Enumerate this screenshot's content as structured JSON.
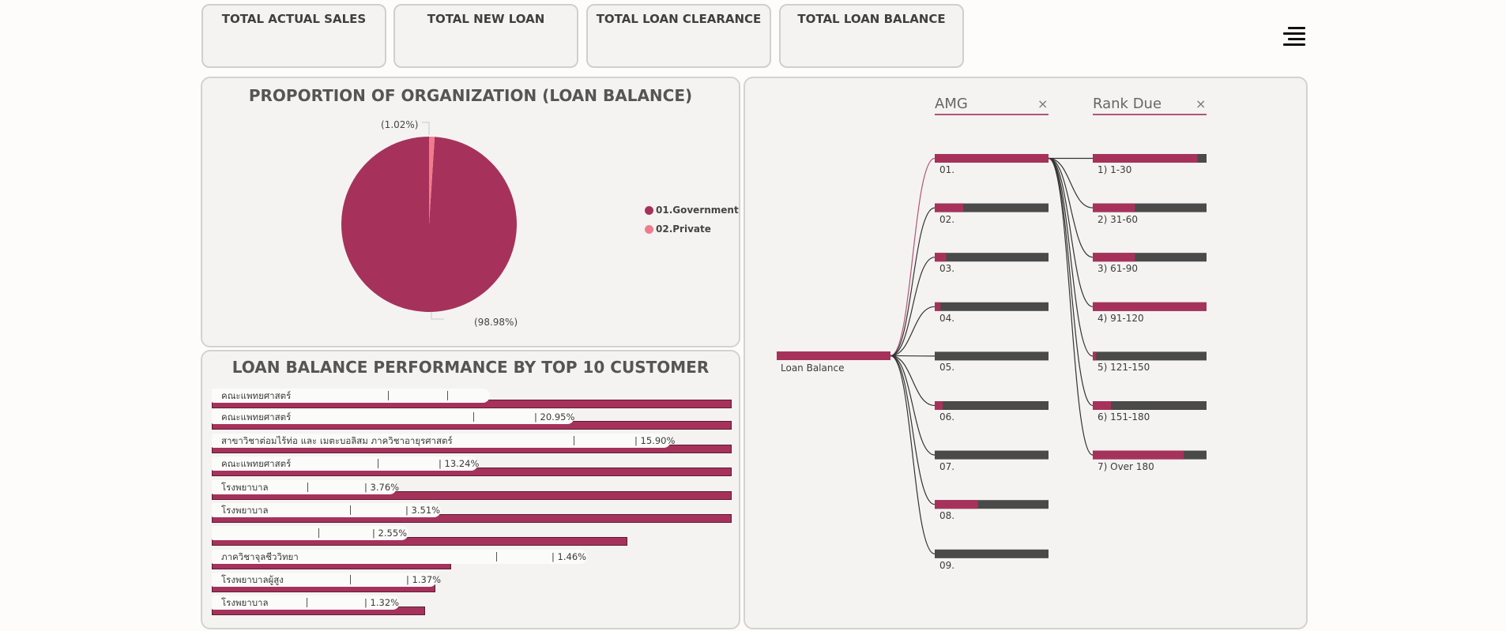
{
  "kpis": [
    {
      "label": "TOTAL ACTUAL SALES"
    },
    {
      "label": "TOTAL NEW LOAN"
    },
    {
      "label": "TOTAL LOAN CLEARANCE"
    },
    {
      "label": "TOTAL LOAN BALANCE"
    }
  ],
  "colors": {
    "accent": "#a6325c",
    "secondary": "#f17b8d",
    "dark_bar": "#4a4a4a",
    "panel_bg": "#f4f3f1"
  },
  "proportion_panel": {
    "title": "PROPORTION OF ORGANIZATION (LOAN BALANCE)",
    "chart_data": {
      "type": "pie",
      "title": "PROPORTION OF ORGANIZATION (LOAN BALANCE)",
      "slices": [
        {
          "name": "01.Government",
          "value": 98.98,
          "label": "(98.98%)",
          "color": "#a6325c"
        },
        {
          "name": "02.Private",
          "value": 1.02,
          "label": "(1.02%)",
          "color": "#f17b8d"
        }
      ],
      "legend": "right"
    }
  },
  "customers_panel": {
    "title": "LOAN BALANCE PERFORMANCE BY TOP 10 CUSTOMER",
    "rows": [
      {
        "name": "คณะแพทยศาสตร์",
        "pct": "",
        "value": 100
      },
      {
        "name": "คณะแพทยศาสตร์",
        "pct": "| 20.95%",
        "value": 100
      },
      {
        "name": "สาขาวิชาต่อมไร้ท่อ และ เมตะบอลิสม ภาควิชาอายุรศาสตร์",
        "pct": "| 15.90%",
        "value": 100
      },
      {
        "name": "คณะแพทยศาสตร์",
        "pct": "| 13.24%",
        "value": 100
      },
      {
        "name": "โรงพยาบาล",
        "pct": "| 3.76%",
        "value": 100
      },
      {
        "name": "โรงพยาบาล",
        "pct": "| 3.51%",
        "value": 100
      },
      {
        "name": "",
        "pct": "| 2.55%",
        "value": 80
      },
      {
        "name": "ภาควิชาจุลชีววิทยา",
        "pct": "| 1.46%",
        "value": 46
      },
      {
        "name": "โรงพยาบาลผู้สูง",
        "pct": "| 1.37%",
        "value": 43
      },
      {
        "name": "โรงพยาบาล",
        "pct": "| 1.32%",
        "value": 41
      }
    ]
  },
  "tree_panel": {
    "slicers": [
      {
        "label": "AMG",
        "clear": "×"
      },
      {
        "label": "Rank Due",
        "clear": "×"
      }
    ],
    "root": {
      "label": "Loan Balance",
      "fill": 1.0
    },
    "amg_nodes": [
      {
        "label": "01.",
        "fill": 1.0
      },
      {
        "label": "02.",
        "fill": 0.25
      },
      {
        "label": "03.",
        "fill": 0.1
      },
      {
        "label": "04.",
        "fill": 0.05
      },
      {
        "label": "05.",
        "fill": 0.0
      },
      {
        "label": "06.",
        "fill": 0.07
      },
      {
        "label": "07.",
        "fill": 0.0
      },
      {
        "label": "08.",
        "fill": 0.38
      },
      {
        "label": "09.",
        "fill": 0.0
      }
    ],
    "rank_nodes": [
      {
        "label": "1) 1-30",
        "fill": 0.92
      },
      {
        "label": "2) 31-60",
        "fill": 0.37
      },
      {
        "label": "3) 61-90",
        "fill": 0.37
      },
      {
        "label": "4) 91-120",
        "fill": 1.0
      },
      {
        "label": "5) 121-150",
        "fill": 0.03
      },
      {
        "label": "6) 151-180",
        "fill": 0.16
      },
      {
        "label": "7) Over 180",
        "fill": 0.8
      }
    ]
  }
}
